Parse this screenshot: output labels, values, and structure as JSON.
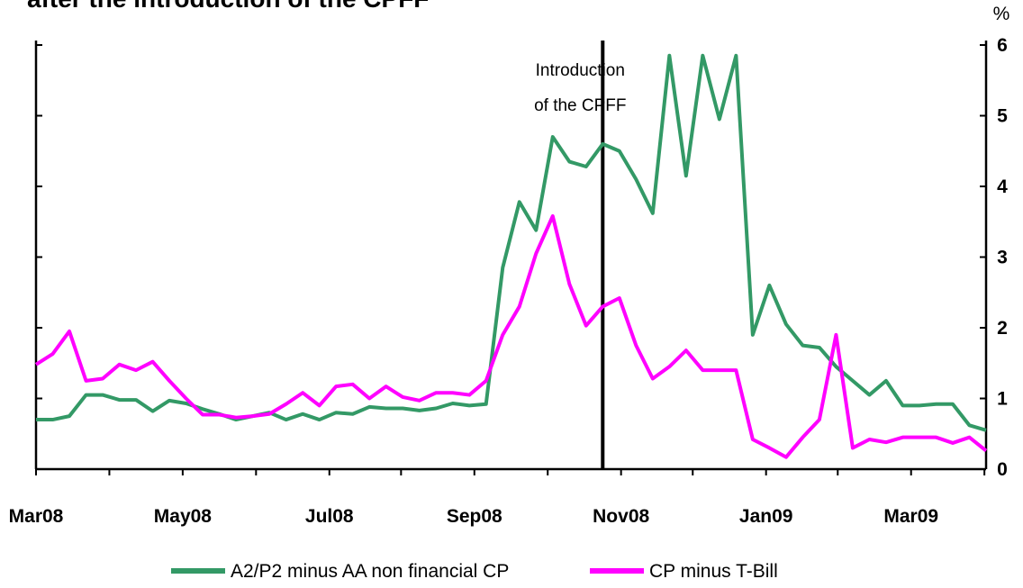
{
  "chart_data": {
    "type": "line",
    "title": "after the introduction of the CPFF",
    "y_unit": "%",
    "annotation": [
      "Introduction",
      "of the CPFF"
    ],
    "annotation_x": 34,
    "x": [
      0,
      1,
      2,
      3,
      4,
      5,
      6,
      7,
      8,
      9,
      10,
      11,
      12,
      13,
      14,
      15,
      16,
      17,
      18,
      19,
      20,
      21,
      22,
      23,
      24,
      25,
      26,
      27,
      28,
      29,
      30,
      31,
      32,
      33,
      34,
      35,
      36,
      37,
      38,
      39,
      40,
      41,
      42,
      43,
      44,
      45,
      46,
      47,
      48,
      49,
      50,
      51,
      52,
      53,
      54,
      55,
      56,
      57
    ],
    "xlim": [
      0,
      57
    ],
    "xticks": [
      {
        "value": 0,
        "label": "Mar08"
      },
      {
        "value": 8.8,
        "label": "May08"
      },
      {
        "value": 17.6,
        "label": "Jul08"
      },
      {
        "value": 26.3,
        "label": "Sep08"
      },
      {
        "value": 35.1,
        "label": "Nov08"
      },
      {
        "value": 43.8,
        "label": "Jan09"
      },
      {
        "value": 52.5,
        "label": "Mar09"
      }
    ],
    "minor_xticks": [
      4.4,
      13.2,
      21.9,
      30.7,
      39.4,
      48.1,
      56.9
    ],
    "ylim": [
      0,
      6
    ],
    "yticks": [
      0,
      1,
      2,
      3,
      4,
      5,
      6
    ],
    "y_axis_side": "right",
    "series": [
      {
        "name": "A2/P2 minus AA non financial CP",
        "color": "#339966",
        "values": [
          0.7,
          0.7,
          0.75,
          1.05,
          1.05,
          0.98,
          0.98,
          0.82,
          0.97,
          0.93,
          0.85,
          0.78,
          0.7,
          0.75,
          0.8,
          0.7,
          0.78,
          0.7,
          0.8,
          0.78,
          0.88,
          0.86,
          0.86,
          0.83,
          0.86,
          0.93,
          0.9,
          0.92,
          2.85,
          3.78,
          3.38,
          4.7,
          4.35,
          4.28,
          4.6,
          4.5,
          4.1,
          3.62,
          5.85,
          4.15,
          5.85,
          4.95,
          5.85,
          1.9,
          2.6,
          2.05,
          1.75,
          1.72,
          1.45,
          1.25,
          1.05,
          1.25,
          0.9,
          0.9,
          0.92,
          0.92,
          0.62,
          0.55
        ]
      },
      {
        "name": "CP minus T-Bill",
        "color": "#ff00ff",
        "values": [
          1.48,
          1.63,
          1.95,
          1.25,
          1.28,
          1.48,
          1.4,
          1.52,
          1.25,
          1.0,
          0.77,
          0.77,
          0.73,
          0.75,
          0.78,
          0.92,
          1.08,
          0.9,
          1.17,
          1.2,
          1.0,
          1.17,
          1.02,
          0.97,
          1.08,
          1.08,
          1.05,
          1.25,
          1.9,
          2.3,
          3.05,
          3.58,
          2.62,
          2.03,
          2.3,
          2.42,
          1.75,
          1.28,
          1.45,
          1.68,
          1.4,
          1.4,
          1.4,
          0.42,
          0.3,
          0.17,
          0.45,
          0.7,
          1.9,
          0.3,
          0.42,
          0.38,
          0.45,
          0.45,
          0.45,
          0.37,
          0.45,
          0.26
        ]
      }
    ]
  }
}
